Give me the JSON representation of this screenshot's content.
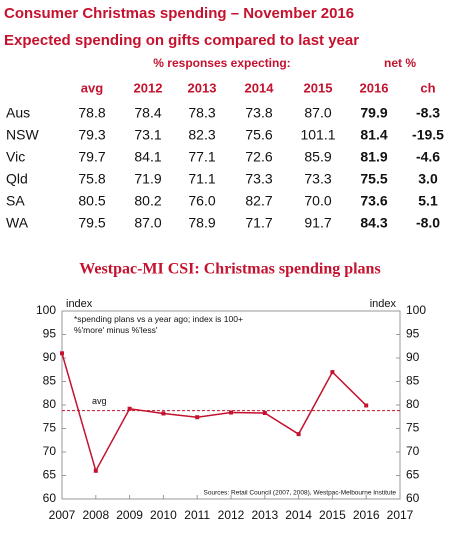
{
  "title": "Consumer Christmas spending – November 2016",
  "table": {
    "title": "Expected spending on gifts compared to last year",
    "group_headers": [
      "% responses expecting:",
      "net %"
    ],
    "columns": [
      "avg",
      "2012",
      "2013",
      "2014",
      "2015",
      "2016",
      "ch"
    ],
    "rows": [
      [
        "Aus",
        "78.8",
        "78.4",
        "78.3",
        "73.8",
        "87.0",
        "79.9",
        "-8.3"
      ],
      [
        "NSW",
        "79.3",
        "73.1",
        "82.3",
        "75.6",
        "101.1",
        "81.4",
        "-19.5"
      ],
      [
        "Vic",
        "79.7",
        "84.1",
        "77.1",
        "72.6",
        "85.9",
        "81.9",
        "-4.6"
      ],
      [
        "Qld",
        "75.8",
        "71.9",
        "71.1",
        "73.3",
        "73.3",
        "75.5",
        "3.0"
      ],
      [
        "SA",
        "80.5",
        "80.2",
        "76.0",
        "82.7",
        "70.0",
        "73.6",
        "5.1"
      ],
      [
        "WA",
        "79.5",
        "87.0",
        "78.9",
        "71.7",
        "91.7",
        "84.3",
        "-8.0"
      ]
    ]
  },
  "chart_data": {
    "type": "line",
    "title": "Westpac-MI CSI: Christmas spending plans",
    "y_label": "index",
    "y2_label": "index",
    "note": "*spending plans vs a year ago; index is 100+ %'more' minus %'less'",
    "source": "Sources: Retail Council (2007, 2008), Westpac-Melbourne Institute",
    "x": [
      2007,
      2008,
      2009,
      2010,
      2011,
      2012,
      2013,
      2014,
      2015,
      2016
    ],
    "values": [
      91,
      66,
      79.2,
      78.2,
      77.4,
      78.4,
      78.3,
      73.8,
      87.0,
      79.9
    ],
    "color": "#c4122f",
    "avg_line": {
      "label": "avg",
      "value": 78.8
    },
    "xlim": [
      2007,
      2017
    ],
    "xticks": [
      2007,
      2008,
      2009,
      2010,
      2011,
      2012,
      2013,
      2014,
      2015,
      2016,
      2017
    ],
    "ylim": [
      60,
      100
    ],
    "yticks": [
      60,
      65,
      70,
      75,
      80,
      85,
      90,
      95,
      100
    ],
    "y2lim": [
      60,
      100
    ],
    "y2ticks": [
      60,
      65,
      70,
      75,
      80,
      85,
      90,
      95,
      100
    ]
  }
}
